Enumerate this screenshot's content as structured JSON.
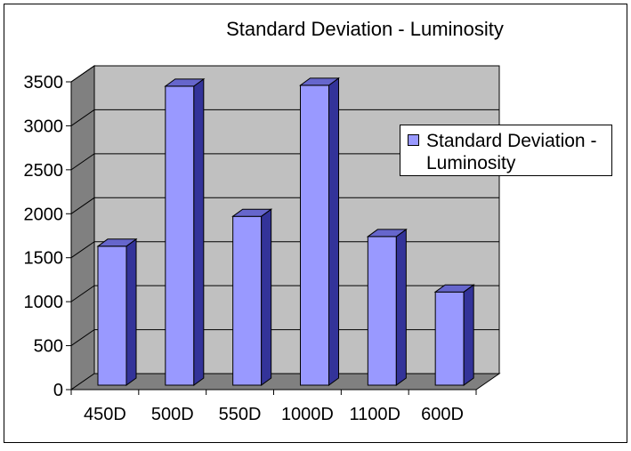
{
  "chart_data": {
    "type": "bar",
    "title": "Standard Deviation - Luminosity",
    "categories": [
      "450D",
      "500D",
      "550D",
      "1000D",
      "1100D",
      "600D"
    ],
    "series": [
      {
        "name": "Standard Deviation - Luminosity",
        "values": [
          1580,
          3400,
          1920,
          3410,
          1690,
          1060
        ]
      }
    ],
    "xlabel": "",
    "ylabel": "",
    "ylim": [
      0,
      3500
    ],
    "yticks": [
      0,
      500,
      1000,
      1500,
      2000,
      2500,
      3000,
      3500
    ],
    "grid": true,
    "legend_position": "right",
    "legend_lines": [
      "Standard Deviation -",
      "Luminosity"
    ],
    "colors": {
      "bar_front": "#9999ff",
      "bar_side": "#333399",
      "bar_top": "#6666cc",
      "back_wall": "#c0c0c0",
      "side_wall": "#808080",
      "floor": "#808080",
      "grid": "#000000",
      "border": "#000000"
    }
  }
}
